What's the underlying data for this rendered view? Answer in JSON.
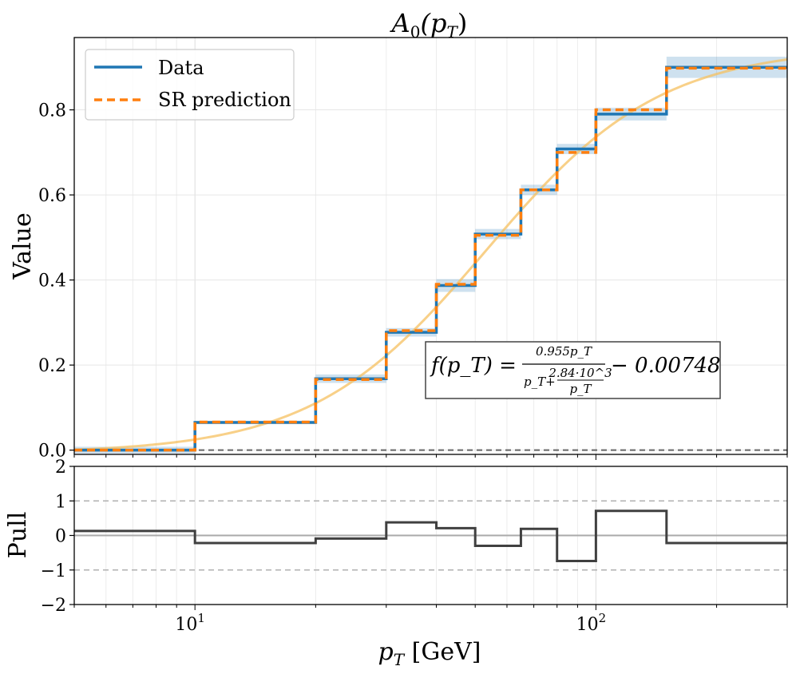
{
  "chart_data": [
    {
      "type": "line",
      "title": "A_0(p_T)",
      "ylabel": "Value",
      "xscale": "log",
      "xlim": [
        5,
        300
      ],
      "ylim": [
        -0.01,
        0.97
      ],
      "yticks": [
        0.0,
        0.2,
        0.4,
        0.6,
        0.8
      ],
      "ytick_labels": [
        "0.0",
        "0.2",
        "0.4",
        "0.6",
        "0.8"
      ],
      "grid": true,
      "legend": {
        "location": "top-left",
        "entries": [
          "Data",
          "SR prediction"
        ]
      },
      "bin_edges": [
        5,
        10,
        20,
        30,
        40,
        50,
        65,
        80,
        100,
        150,
        300
      ],
      "series": [
        {
          "name": "Data",
          "style": "solid",
          "color": "#1f77b4",
          "values": [
            0.0,
            0.065,
            0.168,
            0.277,
            0.387,
            0.508,
            0.612,
            0.708,
            0.79,
            0.9
          ],
          "uncertainty": [
            0.008,
            0.004,
            0.01,
            0.01,
            0.015,
            0.012,
            0.012,
            0.012,
            0.015,
            0.025
          ]
        },
        {
          "name": "SR prediction",
          "style": "dashed",
          "color": "#ff7f0e",
          "values": [
            0.0,
            0.066,
            0.166,
            0.281,
            0.39,
            0.505,
            0.612,
            0.7,
            0.8,
            0.898
          ]
        }
      ],
      "fit_curve": {
        "color": "#f5c060",
        "a": 0.955,
        "b": 2840,
        "c": -0.00748
      },
      "reference_line": {
        "y": 0.0,
        "style": "dashed",
        "color": "#666666"
      },
      "formula": {
        "lhs": "f(p_T) =",
        "numerator": "0.955p_T",
        "denominator_left": "p_T+",
        "inner_numerator": "2.84·10^3",
        "inner_denominator": "p_T",
        "rhs": "− 0.00748"
      }
    },
    {
      "type": "line",
      "xlabel": "p_T [GeV]",
      "ylabel": "Pull",
      "xscale": "log",
      "xlim": [
        5,
        300
      ],
      "ylim": [
        -2,
        2
      ],
      "yticks": [
        -2,
        -1,
        0,
        1,
        2
      ],
      "ytick_labels": [
        "−2",
        "−1",
        "0",
        "1",
        "2"
      ],
      "xticks": [
        10,
        100
      ],
      "xtick_labels": [
        {
          "base": "10",
          "exp": "1"
        },
        {
          "base": "10",
          "exp": "2"
        }
      ],
      "reference_lines": [
        -1,
        0,
        1
      ],
      "series": [
        {
          "name": "Pull",
          "style": "solid",
          "color": "#404040",
          "values": [
            0.13,
            -0.22,
            -0.09,
            0.38,
            0.21,
            -0.3,
            0.19,
            -0.74,
            0.71,
            -0.22
          ]
        }
      ]
    }
  ],
  "legend": {
    "data_label": "Data",
    "sr_label": "SR prediction"
  },
  "titles": {
    "top_title_main": "A",
    "top_title_sub": "0",
    "top_title_arg": "(p",
    "top_title_arg_sub": "T",
    "top_title_close": ")"
  },
  "axes": {
    "value_label": "Value",
    "pull_label": "Pull",
    "x_label_main": "p",
    "x_label_sub": "T",
    "x_label_unit": " [GeV]"
  }
}
